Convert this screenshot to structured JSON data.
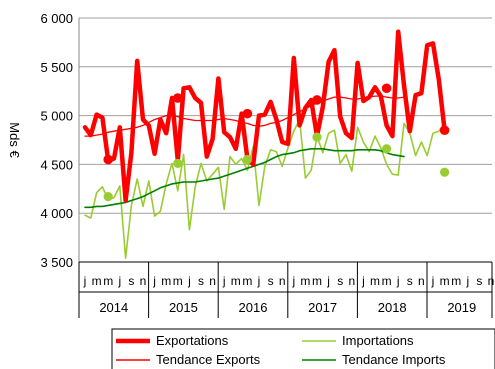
{
  "chart_data": {
    "type": "line",
    "ylabel": "Mds €",
    "ylim": [
      3500,
      6000
    ],
    "yticks": [
      3500,
      4000,
      4500,
      5000,
      5500,
      6000
    ],
    "ytick_labels": [
      "3 500",
      "4 000",
      "4 500",
      "5 000",
      "5 500",
      "6 000"
    ],
    "month_labels": [
      "j",
      "m",
      "m",
      "j",
      "s",
      "n"
    ],
    "years": [
      "2014",
      "2015",
      "2016",
      "2017",
      "2018",
      "2019"
    ],
    "grid": true,
    "legend_position": "bottom",
    "series": [
      {
        "name": "Exportations",
        "color": "#ff0000",
        "values": [
          4880,
          4800,
          5010,
          4980,
          4540,
          4560,
          4880,
          4130,
          4620,
          5560,
          4960,
          4900,
          4610,
          4960,
          4820,
          5180,
          4540,
          5280,
          5290,
          5180,
          5130,
          4580,
          4760,
          5380,
          4830,
          4780,
          4660,
          5020,
          4560,
          4500,
          5000,
          5010,
          5140,
          4960,
          4730,
          4710,
          5590,
          4900,
          5080,
          5160,
          4790,
          5090,
          5550,
          5670,
          4990,
          4820,
          4770,
          5540,
          5150,
          5190,
          5290,
          5200,
          4900,
          4790,
          5860,
          5310,
          4840,
          5210,
          5230,
          5720,
          5740,
          5370,
          4850
        ],
        "marker_values": [
          4550,
          5180,
          5020,
          5160,
          5280,
          4850
        ]
      },
      {
        "name": "Importations",
        "color": "#99cc33",
        "values": [
          3980,
          3950,
          4210,
          4270,
          4140,
          4160,
          4280,
          3540,
          4080,
          4350,
          4070,
          4330,
          3970,
          4020,
          4300,
          4510,
          4230,
          4600,
          3830,
          4270,
          4510,
          4330,
          4400,
          4470,
          4040,
          4580,
          4500,
          4560,
          4440,
          4680,
          4080,
          4480,
          4650,
          4630,
          4480,
          4670,
          4840,
          4960,
          4360,
          4440,
          4790,
          4620,
          4820,
          4850,
          4510,
          4600,
          4430,
          4880,
          4730,
          4630,
          4790,
          4670,
          4500,
          4400,
          4390,
          4920,
          4820,
          4590,
          4730,
          4590,
          4820,
          4840,
          4920
        ],
        "marker_values": [
          4170,
          4510,
          4550,
          4780,
          4660,
          4420
        ]
      },
      {
        "name": "Tendance Exports",
        "color": "#ff0000",
        "values": [
          4790,
          4790,
          4800,
          4810,
          4830,
          4840,
          4850,
          4860,
          4870,
          4880,
          4900,
          4930,
          4960,
          4980,
          5000,
          5000,
          4990,
          4970,
          4960,
          4950,
          4950,
          4950,
          4950,
          4960,
          4970,
          4960,
          4950,
          4930,
          4920,
          4900,
          4890,
          4900,
          4920,
          4930,
          4950,
          4980,
          5010,
          5040,
          5070,
          5100,
          5130,
          5150,
          5170,
          5190,
          5190,
          5180,
          5170,
          5170,
          5180,
          5190,
          5200,
          5200,
          5190,
          5180,
          5180,
          5190
        ]
      },
      {
        "name": "Tendance Imports",
        "color": "#008000",
        "values": [
          4060,
          4060,
          4070,
          4070,
          4080,
          4090,
          4100,
          4110,
          4130,
          4150,
          4170,
          4200,
          4230,
          4260,
          4280,
          4300,
          4310,
          4320,
          4320,
          4320,
          4330,
          4340,
          4350,
          4360,
          4380,
          4400,
          4420,
          4440,
          4460,
          4480,
          4500,
          4520,
          4550,
          4580,
          4600,
          4610,
          4620,
          4640,
          4650,
          4660,
          4660,
          4660,
          4650,
          4640,
          4640,
          4640,
          4640,
          4650,
          4650,
          4650,
          4650,
          4640,
          4620,
          4600,
          4590,
          4580
        ]
      }
    ]
  }
}
